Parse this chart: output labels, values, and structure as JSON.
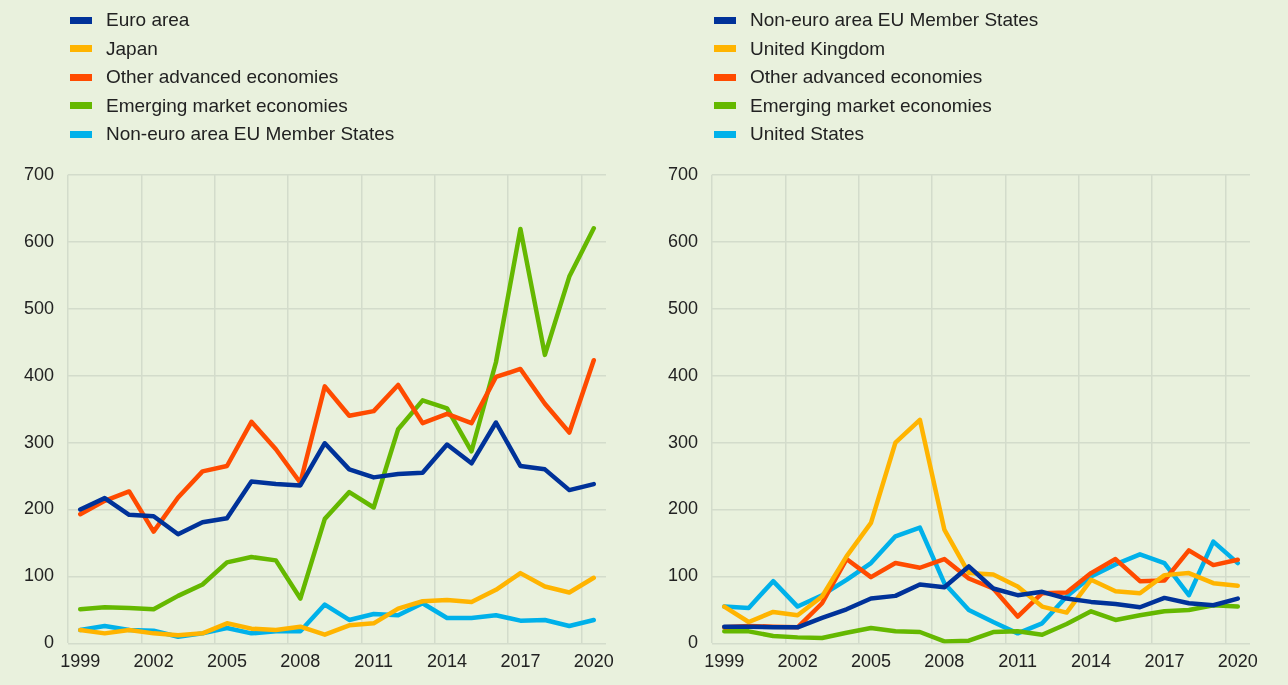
{
  "chart_data": [
    {
      "type": "line",
      "categories": [
        "1999",
        null,
        null,
        "2002",
        null,
        null,
        "2005",
        null,
        null,
        "2008",
        null,
        null,
        "2011",
        null,
        null,
        "2014",
        null,
        null,
        "2017",
        null,
        null,
        "2020"
      ],
      "ylim": [
        0,
        700
      ],
      "yticks": [
        0,
        100,
        200,
        300,
        400,
        500,
        600,
        700
      ],
      "grid": true,
      "legend": "top left",
      "series": [
        {
          "name": "Euro area",
          "color": "#003299",
          "values": [
            200,
            217,
            192,
            190,
            163,
            181,
            187,
            242,
            238,
            236,
            299,
            260,
            248,
            253,
            255,
            297,
            269,
            330,
            265,
            260,
            229,
            238
          ]
        },
        {
          "name": "Japan",
          "color": "#ffb400",
          "values": [
            20,
            15,
            20,
            15,
            12,
            15,
            30,
            22,
            20,
            25,
            13,
            27,
            30,
            52,
            63,
            65,
            62,
            80,
            105,
            85,
            76,
            98
          ]
        },
        {
          "name": "Other advanced economies",
          "color": "#ff4b00",
          "values": [
            193,
            213,
            227,
            167,
            218,
            257,
            265,
            331,
            290,
            240,
            384,
            340,
            347,
            386,
            329,
            343,
            329,
            398,
            410,
            358,
            315,
            423
          ]
        },
        {
          "name": "Emerging market economies",
          "color": "#65b800",
          "values": [
            51,
            54,
            53,
            51,
            71,
            88,
            121,
            129,
            124,
            67,
            186,
            226,
            203,
            320,
            363,
            351,
            287,
            420,
            619,
            431,
            548,
            620
          ]
        },
        {
          "name": "Non-euro area EU Member States",
          "color": "#00b1ea",
          "values": [
            20,
            26,
            20,
            19,
            10,
            15,
            23,
            15,
            18,
            18,
            58,
            35,
            44,
            42,
            60,
            38,
            38,
            42,
            34,
            35,
            26,
            35
          ]
        }
      ]
    },
    {
      "type": "line",
      "categories": [
        "1999",
        null,
        null,
        "2002",
        null,
        null,
        "2005",
        null,
        null,
        "2008",
        null,
        null,
        "2011",
        null,
        null,
        "2014",
        null,
        null,
        "2017",
        null,
        null,
        "2020"
      ],
      "ylim": [
        0,
        700
      ],
      "yticks": [
        0,
        100,
        200,
        300,
        400,
        500,
        600,
        700
      ],
      "grid": true,
      "legend": "top left",
      "series": [
        {
          "name": "Non-euro area EU Member States",
          "color": "#003299",
          "values": [
            25,
            25,
            24,
            24,
            38,
            51,
            67,
            71,
            88,
            84,
            115,
            82,
            72,
            77,
            67,
            62,
            59,
            54,
            68,
            60,
            57,
            67
          ]
        },
        {
          "name": "United Kingdom",
          "color": "#ffb400",
          "values": [
            55,
            32,
            47,
            42,
            70,
            130,
            180,
            300,
            334,
            170,
            105,
            103,
            85,
            55,
            46,
            95,
            78,
            75,
            102,
            105,
            90,
            86
          ]
        },
        {
          "name": "Other advanced economies",
          "color": "#ff4b00",
          "values": [
            24,
            26,
            25,
            24,
            60,
            126,
            99,
            120,
            113,
            126,
            97,
            82,
            40,
            75,
            76,
            105,
            126,
            93,
            94,
            139,
            117,
            125
          ]
        },
        {
          "name": "Emerging market economies",
          "color": "#65b800",
          "values": [
            18,
            18,
            11,
            9,
            8,
            16,
            23,
            18,
            17,
            3,
            4,
            17,
            18,
            13,
            29,
            48,
            35,
            42,
            48,
            50,
            57,
            55
          ]
        },
        {
          "name": "United States",
          "color": "#00b1ea",
          "values": [
            55,
            53,
            93,
            55,
            72,
            95,
            120,
            160,
            173,
            90,
            50,
            32,
            15,
            30,
            70,
            100,
            118,
            133,
            120,
            72,
            152,
            120
          ]
        }
      ]
    }
  ]
}
